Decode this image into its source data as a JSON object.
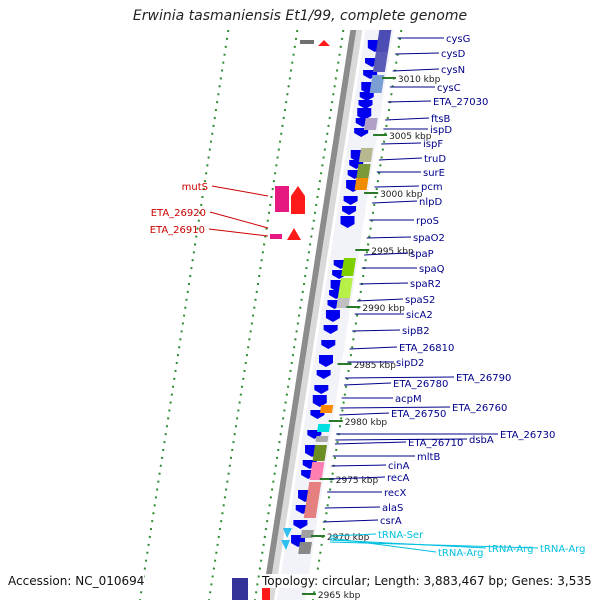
{
  "title": "Erwinia tasmaniensis Et1/99, complete genome",
  "footer": {
    "accession": "Accession: NC_010694",
    "summary": "Topology: circular; Length: 3,883,467 bp; Genes: 3,535"
  },
  "colors": {
    "gene_blue": "#0000ee",
    "label_blue": "#00008b",
    "label_red": "#cc0000",
    "label_trna": "#00bfdf",
    "ruler_green": "#2a7a2a"
  },
  "ticks": [
    {
      "label": "3010 kbp"
    },
    {
      "label": "3005 kbp"
    },
    {
      "label": "3000 kbp"
    },
    {
      "label": "2995 kbp"
    },
    {
      "label": "2990 kbp"
    },
    {
      "label": "2985 kbp"
    },
    {
      "label": "2980 kbp"
    },
    {
      "label": "2975 kbp"
    },
    {
      "label": "2970 kbp"
    },
    {
      "label": "2965 kbp"
    }
  ],
  "genes_forward": [
    {
      "label": "cysG"
    },
    {
      "label": "cysD"
    },
    {
      "label": "cysN"
    },
    {
      "label": "cysC"
    },
    {
      "label": "ETA_27030"
    },
    {
      "label": "ftsB"
    },
    {
      "label": "ispD"
    },
    {
      "label": "ispF"
    },
    {
      "label": "truD"
    },
    {
      "label": "surE"
    },
    {
      "label": "pcm"
    },
    {
      "label": "nlpD"
    },
    {
      "label": "rpoS"
    },
    {
      "label": "spaO2"
    },
    {
      "label": "spaP"
    },
    {
      "label": "spaQ"
    },
    {
      "label": "spaR2"
    },
    {
      "label": "spaS2"
    },
    {
      "label": "sicA2"
    },
    {
      "label": "sipB2"
    },
    {
      "label": "ETA_26810"
    },
    {
      "label": "sipD2"
    },
    {
      "label": "ETA_26790"
    },
    {
      "label": "ETA_26780"
    },
    {
      "label": "acpM"
    },
    {
      "label": "ETA_26760"
    },
    {
      "label": "ETA_26750"
    },
    {
      "label": "ETA_26730"
    },
    {
      "label": "dsbA"
    },
    {
      "label": "ETA_26710"
    },
    {
      "label": "mltB"
    },
    {
      "label": "cinA"
    },
    {
      "label": "recA"
    },
    {
      "label": "recX"
    },
    {
      "label": "alaS"
    },
    {
      "label": "csrA"
    }
  ],
  "genes_reverse": [
    {
      "label": "mutS"
    },
    {
      "label": "ETA_26920"
    },
    {
      "label": "ETA_26910"
    }
  ],
  "trnas": [
    {
      "label": "tRNA-Ser"
    },
    {
      "label": "tRNA-Arg"
    },
    {
      "label": "tRNA-Arg"
    },
    {
      "label": "tRNA-Arg"
    }
  ]
}
